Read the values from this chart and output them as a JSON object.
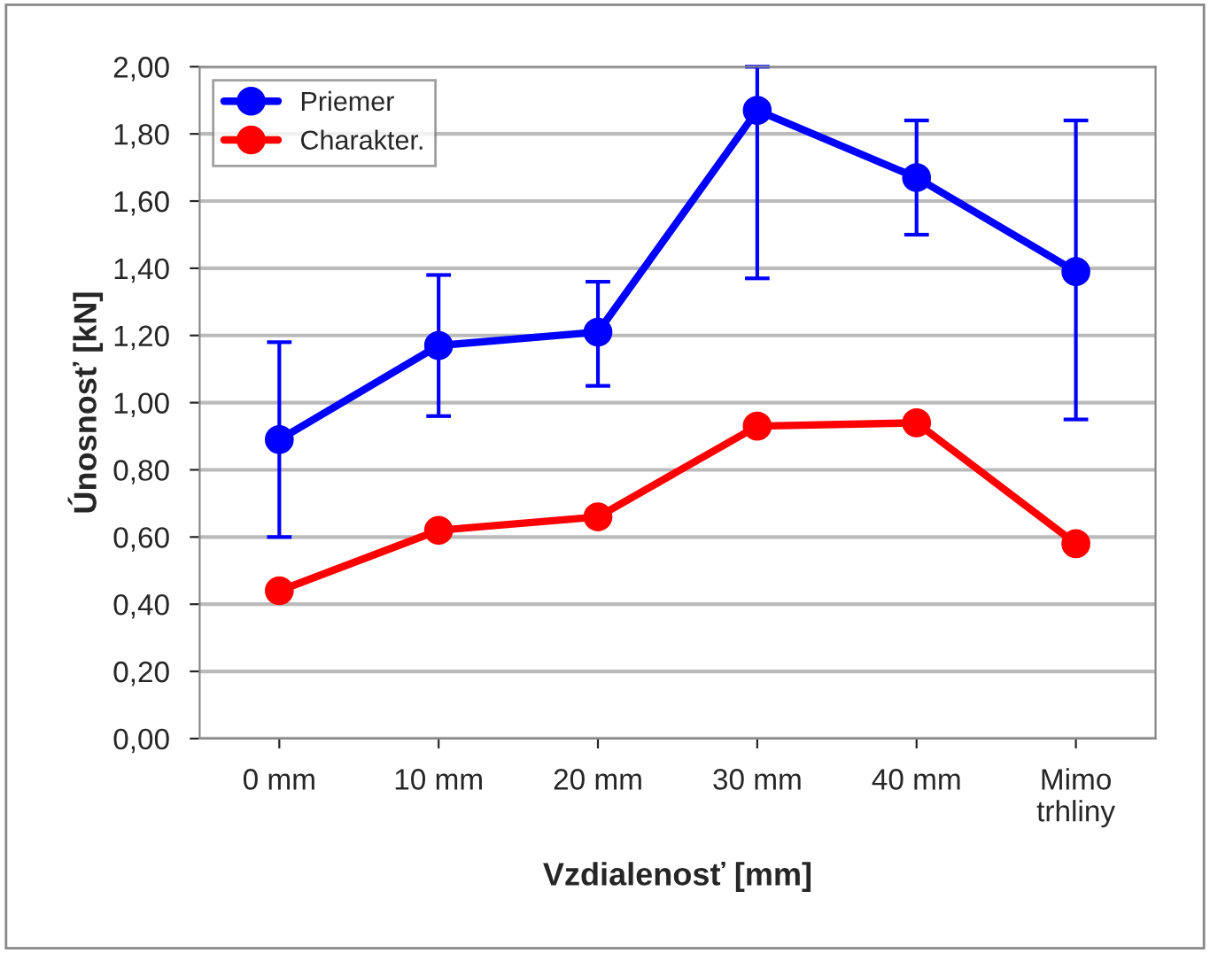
{
  "chart_data": {
    "type": "line",
    "xlabel": "Vzdialenosť [mm]",
    "ylabel": "Únosnosť [kN]",
    "categories": [
      "0 mm",
      "10 mm",
      "20 mm",
      "30 mm",
      "40 mm",
      "Mimo\ntrhliny"
    ],
    "series": [
      {
        "name": "Priemer",
        "color": "#0000ff",
        "values": [
          0.89,
          1.17,
          1.21,
          1.87,
          1.67,
          1.39
        ],
        "errors": [
          [
            0.6,
            1.18
          ],
          [
            0.96,
            1.38
          ],
          [
            1.05,
            1.36
          ],
          [
            1.37,
            2.0
          ],
          [
            1.5,
            1.84
          ],
          [
            0.95,
            1.84
          ]
        ]
      },
      {
        "name": "Charakter.",
        "color": "#ff0000",
        "values": [
          0.44,
          0.62,
          0.66,
          0.93,
          0.94,
          0.58
        ]
      }
    ],
    "ylim": [
      0,
      2
    ],
    "yticks": [
      {
        "value": 0,
        "label": "0,00"
      },
      {
        "value": 0.2,
        "label": "0,20"
      },
      {
        "value": 0.4,
        "label": "0,40"
      },
      {
        "value": 0.6,
        "label": "0,60"
      },
      {
        "value": 0.8,
        "label": "0,80"
      },
      {
        "value": 1.0,
        "label": "1,00"
      },
      {
        "value": 1.2,
        "label": "1,20"
      },
      {
        "value": 1.4,
        "label": "1,40"
      },
      {
        "value": 1.6,
        "label": "1,60"
      },
      {
        "value": 1.8,
        "label": "1,80"
      },
      {
        "value": 2.0,
        "label": "2,00"
      }
    ],
    "grid": "y",
    "legend": "top left",
    "marker": "circle",
    "line_style": "solid"
  }
}
